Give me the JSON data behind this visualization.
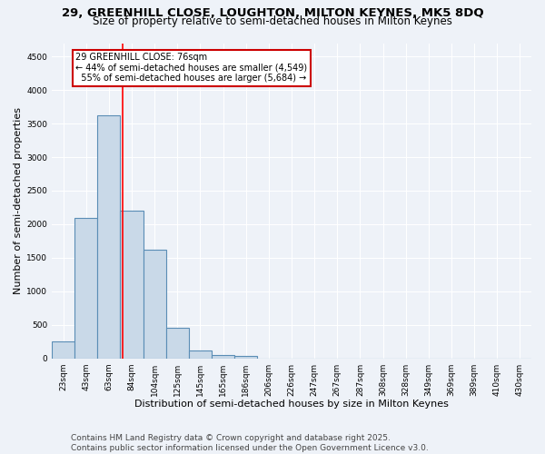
{
  "title_line1": "29, GREENHILL CLOSE, LOUGHTON, MILTON KEYNES, MK5 8DQ",
  "title_line2": "Size of property relative to semi-detached houses in Milton Keynes",
  "xlabel": "Distribution of semi-detached houses by size in Milton Keynes",
  "ylabel": "Number of semi-detached properties",
  "footer": "Contains HM Land Registry data © Crown copyright and database right 2025.\nContains public sector information licensed under the Open Government Licence v3.0.",
  "categories": [
    "23sqm",
    "43sqm",
    "63sqm",
    "84sqm",
    "104sqm",
    "125sqm",
    "145sqm",
    "165sqm",
    "186sqm",
    "206sqm",
    "226sqm",
    "247sqm",
    "267sqm",
    "287sqm",
    "308sqm",
    "328sqm",
    "349sqm",
    "369sqm",
    "389sqm",
    "410sqm",
    "430sqm"
  ],
  "values": [
    250,
    2100,
    3620,
    2200,
    1620,
    450,
    110,
    50,
    30,
    0,
    0,
    0,
    0,
    0,
    0,
    0,
    0,
    0,
    0,
    0,
    0
  ],
  "bar_color": "#c9d9e8",
  "bar_edge_color": "#5a8db5",
  "bar_edge_width": 0.8,
  "annotation_text": "29 GREENHILL CLOSE: 76sqm\n← 44% of semi-detached houses are smaller (4,549)\n  55% of semi-detached houses are larger (5,684) →",
  "annotation_box_color": "#ffffff",
  "annotation_box_edge": "#cc0000",
  "ylim": [
    0,
    4700
  ],
  "yticks": [
    0,
    500,
    1000,
    1500,
    2000,
    2500,
    3000,
    3500,
    4000,
    4500
  ],
  "background_color": "#eef2f8",
  "grid_color": "#ffffff",
  "title_fontsize": 9.5,
  "subtitle_fontsize": 8.5,
  "axis_label_fontsize": 8,
  "tick_fontsize": 6.5,
  "footer_fontsize": 6.5,
  "annot_fontsize": 7.0
}
